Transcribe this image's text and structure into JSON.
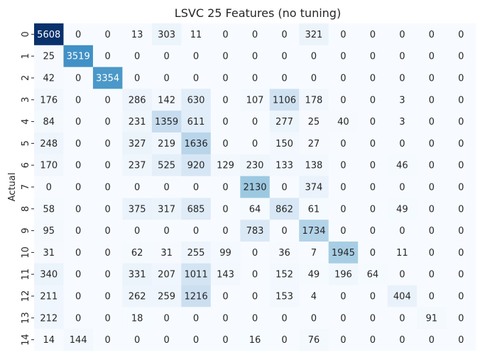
{
  "chart_data": {
    "type": "heatmap",
    "title": "LSVC 25 Features (no tuning)",
    "ylabel": "Actual",
    "xlabel": "",
    "row_labels": [
      "0",
      "1",
      "2",
      "3",
      "4",
      "5",
      "6",
      "7",
      "8",
      "9",
      "10",
      "11",
      "12",
      "13",
      "14"
    ],
    "col_labels": [],
    "colormap": "Blues",
    "value_range": [
      0,
      5608
    ],
    "values": [
      [
        5608,
        0,
        0,
        13,
        303,
        11,
        0,
        0,
        0,
        321,
        0,
        0,
        0,
        0,
        0
      ],
      [
        25,
        3519,
        0,
        0,
        0,
        0,
        0,
        0,
        0,
        0,
        0,
        0,
        0,
        0,
        0
      ],
      [
        42,
        0,
        3354,
        0,
        0,
        0,
        0,
        0,
        0,
        0,
        0,
        0,
        0,
        0,
        0
      ],
      [
        176,
        0,
        0,
        286,
        142,
        630,
        0,
        107,
        1106,
        178,
        0,
        0,
        3,
        0,
        0
      ],
      [
        84,
        0,
        0,
        231,
        1359,
        611,
        0,
        0,
        277,
        25,
        40,
        0,
        3,
        0,
        0
      ],
      [
        248,
        0,
        0,
        327,
        219,
        1636,
        0,
        0,
        150,
        27,
        0,
        0,
        0,
        0,
        0
      ],
      [
        170,
        0,
        0,
        237,
        525,
        920,
        129,
        230,
        133,
        138,
        0,
        0,
        46,
        0,
        0
      ],
      [
        0,
        0,
        0,
        0,
        0,
        0,
        0,
        2130,
        0,
        374,
        0,
        0,
        0,
        0,
        0
      ],
      [
        58,
        0,
        0,
        375,
        317,
        685,
        0,
        64,
        862,
        61,
        0,
        0,
        49,
        0,
        0
      ],
      [
        95,
        0,
        0,
        0,
        0,
        0,
        0,
        783,
        0,
        1734,
        0,
        0,
        0,
        0,
        0
      ],
      [
        31,
        0,
        0,
        62,
        31,
        255,
        99,
        0,
        36,
        7,
        1945,
        0,
        11,
        0,
        0
      ],
      [
        340,
        0,
        0,
        331,
        207,
        1011,
        143,
        0,
        152,
        49,
        196,
        64,
        0,
        0,
        0
      ],
      [
        211,
        0,
        0,
        262,
        259,
        1216,
        0,
        0,
        153,
        4,
        0,
        0,
        404,
        0,
        0
      ],
      [
        212,
        0,
        0,
        18,
        0,
        0,
        0,
        0,
        0,
        0,
        0,
        0,
        0,
        91,
        0
      ],
      [
        14,
        144,
        0,
        0,
        0,
        0,
        0,
        16,
        0,
        76,
        0,
        0,
        0,
        0,
        0
      ]
    ]
  }
}
